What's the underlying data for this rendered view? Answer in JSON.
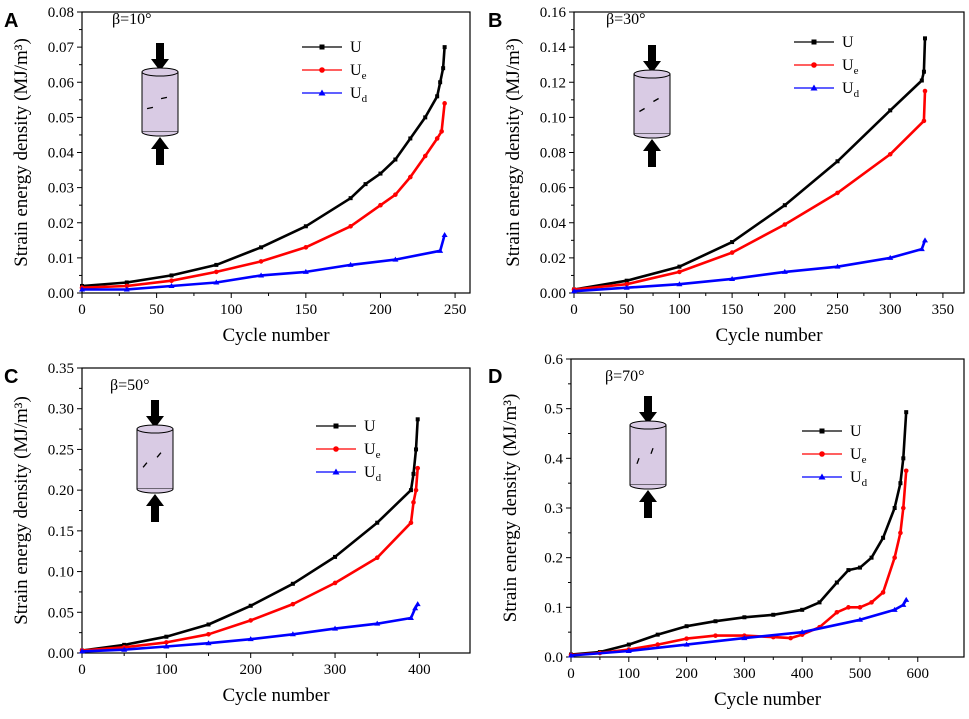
{
  "colors": {
    "U": "#000000",
    "Ue": "#ff0000",
    "Ud": "#0000ff",
    "specimen": "#d9cbe4"
  },
  "legend": [
    {
      "key": "U",
      "base": "U",
      "sub": ""
    },
    {
      "key": "Ue",
      "base": "U",
      "sub": "e"
    },
    {
      "key": "Ud",
      "base": "U",
      "sub": "d"
    }
  ],
  "chart_data": [
    {
      "panel": "A",
      "type": "line",
      "beta_label": "β=10°",
      "xlabel": "Cycle number",
      "ylabel": "Strain energy density (MJ/m³)",
      "xlim": [
        0,
        260
      ],
      "ylim": [
        0,
        0.08
      ],
      "xticks": [
        0,
        50,
        100,
        150,
        200,
        250
      ],
      "yticks": [
        0.0,
        0.01,
        0.02,
        0.03,
        0.04,
        0.05,
        0.06,
        0.07,
        0.08
      ],
      "ytick_labels": [
        "0.00",
        "0.01",
        "0.02",
        "0.03",
        "0.04",
        "0.05",
        "0.06",
        "0.07",
        "0.08"
      ],
      "series": [
        {
          "name": "U",
          "x": [
            0,
            30,
            60,
            90,
            120,
            150,
            180,
            190,
            200,
            210,
            220,
            230,
            238,
            240,
            242,
            243
          ],
          "y": [
            0.002,
            0.003,
            0.005,
            0.008,
            0.013,
            0.019,
            0.027,
            0.031,
            0.034,
            0.038,
            0.044,
            0.05,
            0.056,
            0.06,
            0.064,
            0.07
          ]
        },
        {
          "name": "Ue",
          "x": [
            0,
            30,
            60,
            90,
            120,
            150,
            180,
            200,
            210,
            220,
            230,
            238,
            241,
            243
          ],
          "y": [
            0.0015,
            0.002,
            0.0035,
            0.006,
            0.009,
            0.013,
            0.019,
            0.025,
            0.028,
            0.033,
            0.039,
            0.044,
            0.046,
            0.054
          ]
        },
        {
          "name": "Ud",
          "x": [
            0,
            30,
            60,
            90,
            120,
            150,
            180,
            210,
            240,
            243
          ],
          "y": [
            0.001,
            0.001,
            0.002,
            0.003,
            0.005,
            0.006,
            0.008,
            0.0095,
            0.012,
            0.0165
          ]
        }
      ]
    },
    {
      "panel": "B",
      "type": "line",
      "beta_label": "β=30°",
      "xlabel": "Cycle number",
      "ylabel": "Strain energy density (MJ/m³)",
      "xlim": [
        0,
        370
      ],
      "ylim": [
        0,
        0.16
      ],
      "xticks": [
        0,
        50,
        100,
        150,
        200,
        250,
        300,
        350
      ],
      "yticks": [
        0.0,
        0.02,
        0.04,
        0.06,
        0.08,
        0.1,
        0.12,
        0.14,
        0.16
      ],
      "ytick_labels": [
        "0.00",
        "0.02",
        "0.04",
        "0.06",
        "0.08",
        "0.10",
        "0.12",
        "0.14",
        "0.16"
      ],
      "series": [
        {
          "name": "U",
          "x": [
            0,
            50,
            100,
            150,
            200,
            250,
            300,
            330,
            332,
            333
          ],
          "y": [
            0.002,
            0.007,
            0.015,
            0.029,
            0.05,
            0.075,
            0.104,
            0.121,
            0.126,
            0.145
          ]
        },
        {
          "name": "Ue",
          "x": [
            0,
            50,
            100,
            150,
            200,
            250,
            300,
            332,
            333
          ],
          "y": [
            0.002,
            0.005,
            0.012,
            0.023,
            0.039,
            0.057,
            0.079,
            0.098,
            0.115
          ]
        },
        {
          "name": "Ud",
          "x": [
            0,
            50,
            100,
            150,
            200,
            250,
            300,
            330,
            333
          ],
          "y": [
            0.001,
            0.003,
            0.005,
            0.008,
            0.012,
            0.015,
            0.02,
            0.025,
            0.03
          ]
        }
      ]
    },
    {
      "panel": "C",
      "type": "line",
      "beta_label": "β=50°",
      "xlabel": "Cycle number",
      "ylabel": "Strain energy density (MJ/m³)",
      "xlim": [
        0,
        460
      ],
      "ylim": [
        0,
        0.35
      ],
      "xticks": [
        0,
        100,
        200,
        300,
        400
      ],
      "yticks": [
        0.0,
        0.05,
        0.1,
        0.15,
        0.2,
        0.25,
        0.3,
        0.35
      ],
      "ytick_labels": [
        "0.00",
        "0.05",
        "0.10",
        "0.15",
        "0.20",
        "0.25",
        "0.30",
        "0.35"
      ],
      "series": [
        {
          "name": "U",
          "x": [
            0,
            50,
            100,
            150,
            200,
            250,
            300,
            350,
            390,
            393,
            396,
            398
          ],
          "y": [
            0.003,
            0.01,
            0.02,
            0.035,
            0.058,
            0.085,
            0.118,
            0.16,
            0.2,
            0.22,
            0.25,
            0.287
          ]
        },
        {
          "name": "Ue",
          "x": [
            0,
            50,
            100,
            150,
            200,
            250,
            300,
            350,
            390,
            393,
            396,
            398
          ],
          "y": [
            0.003,
            0.007,
            0.013,
            0.023,
            0.04,
            0.06,
            0.086,
            0.117,
            0.16,
            0.185,
            0.2,
            0.227
          ]
        },
        {
          "name": "Ud",
          "x": [
            0,
            50,
            100,
            150,
            200,
            250,
            300,
            350,
            390,
            395,
            398
          ],
          "y": [
            0.002,
            0.004,
            0.008,
            0.012,
            0.017,
            0.023,
            0.03,
            0.036,
            0.043,
            0.055,
            0.06
          ]
        }
      ]
    },
    {
      "panel": "D",
      "type": "line",
      "beta_label": "β=70°",
      "xlabel": "Cycle number",
      "ylabel": "Strain energy density (MJ/m³)",
      "xlim": [
        0,
        680
      ],
      "ylim": [
        0,
        0.6
      ],
      "xticks": [
        0,
        100,
        200,
        300,
        400,
        500,
        600
      ],
      "yticks": [
        0.0,
        0.1,
        0.2,
        0.3,
        0.4,
        0.5,
        0.6
      ],
      "ytick_labels": [
        "0.0",
        "0.1",
        "0.2",
        "0.3",
        "0.4",
        "0.5",
        "0.6"
      ],
      "series": [
        {
          "name": "U",
          "x": [
            0,
            50,
            100,
            150,
            200,
            250,
            300,
            350,
            400,
            430,
            460,
            480,
            500,
            520,
            540,
            560,
            570,
            575,
            580
          ],
          "y": [
            0.005,
            0.01,
            0.025,
            0.045,
            0.062,
            0.072,
            0.08,
            0.085,
            0.095,
            0.11,
            0.15,
            0.175,
            0.18,
            0.2,
            0.24,
            0.3,
            0.35,
            0.4,
            0.493
          ]
        },
        {
          "name": "Ue",
          "x": [
            0,
            50,
            100,
            150,
            200,
            250,
            300,
            350,
            380,
            400,
            430,
            460,
            480,
            500,
            520,
            540,
            560,
            570,
            575,
            580
          ],
          "y": [
            0.004,
            0.008,
            0.015,
            0.025,
            0.037,
            0.043,
            0.043,
            0.04,
            0.038,
            0.045,
            0.06,
            0.09,
            0.1,
            0.1,
            0.11,
            0.13,
            0.2,
            0.25,
            0.3,
            0.375
          ]
        },
        {
          "name": "Ud",
          "x": [
            0,
            100,
            200,
            300,
            400,
            500,
            560,
            575,
            580
          ],
          "y": [
            0.003,
            0.012,
            0.025,
            0.038,
            0.05,
            0.075,
            0.095,
            0.105,
            0.115
          ]
        }
      ]
    }
  ]
}
